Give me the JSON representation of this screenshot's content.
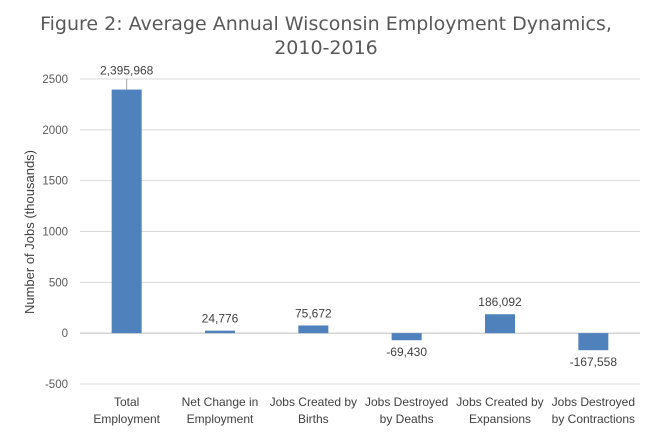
{
  "chart_data": {
    "type": "bar",
    "title": "Figure 2: Average Annual Wisconsin Employment Dynamics, 2010-2016",
    "title_lines": [
      "Figure 2: Average Annual Wisconsin Employment Dynamics,",
      "2010-2016"
    ],
    "xlabel": "",
    "ylabel": "Number of Jobs (thousands)",
    "ylim": [
      -500,
      2500
    ],
    "yticks": [
      -500,
      0,
      500,
      1000,
      1500,
      2000,
      2500
    ],
    "ytick_labels": [
      "-500",
      "0",
      "500",
      "1000",
      "1500",
      "2000",
      "2500"
    ],
    "grid": true,
    "legend": "none",
    "bar_color": "#4f81bd",
    "categories": [
      [
        "Total",
        "Employment"
      ],
      [
        "Net  Change in",
        "Employment"
      ],
      [
        "Jobs Created by",
        "Births"
      ],
      [
        "Jobs Destroyed",
        "by Deaths"
      ],
      [
        "Jobs Created by",
        "Expansions"
      ],
      [
        "Jobs Destroyed",
        "by Contractions"
      ]
    ],
    "values": [
      2395.968,
      24.776,
      75.672,
      -69.43,
      186.092,
      -167.558
    ],
    "data_labels": [
      "2,395,968",
      "24,776",
      "75,672",
      "-69,430",
      "186,092",
      "-167,558"
    ]
  }
}
